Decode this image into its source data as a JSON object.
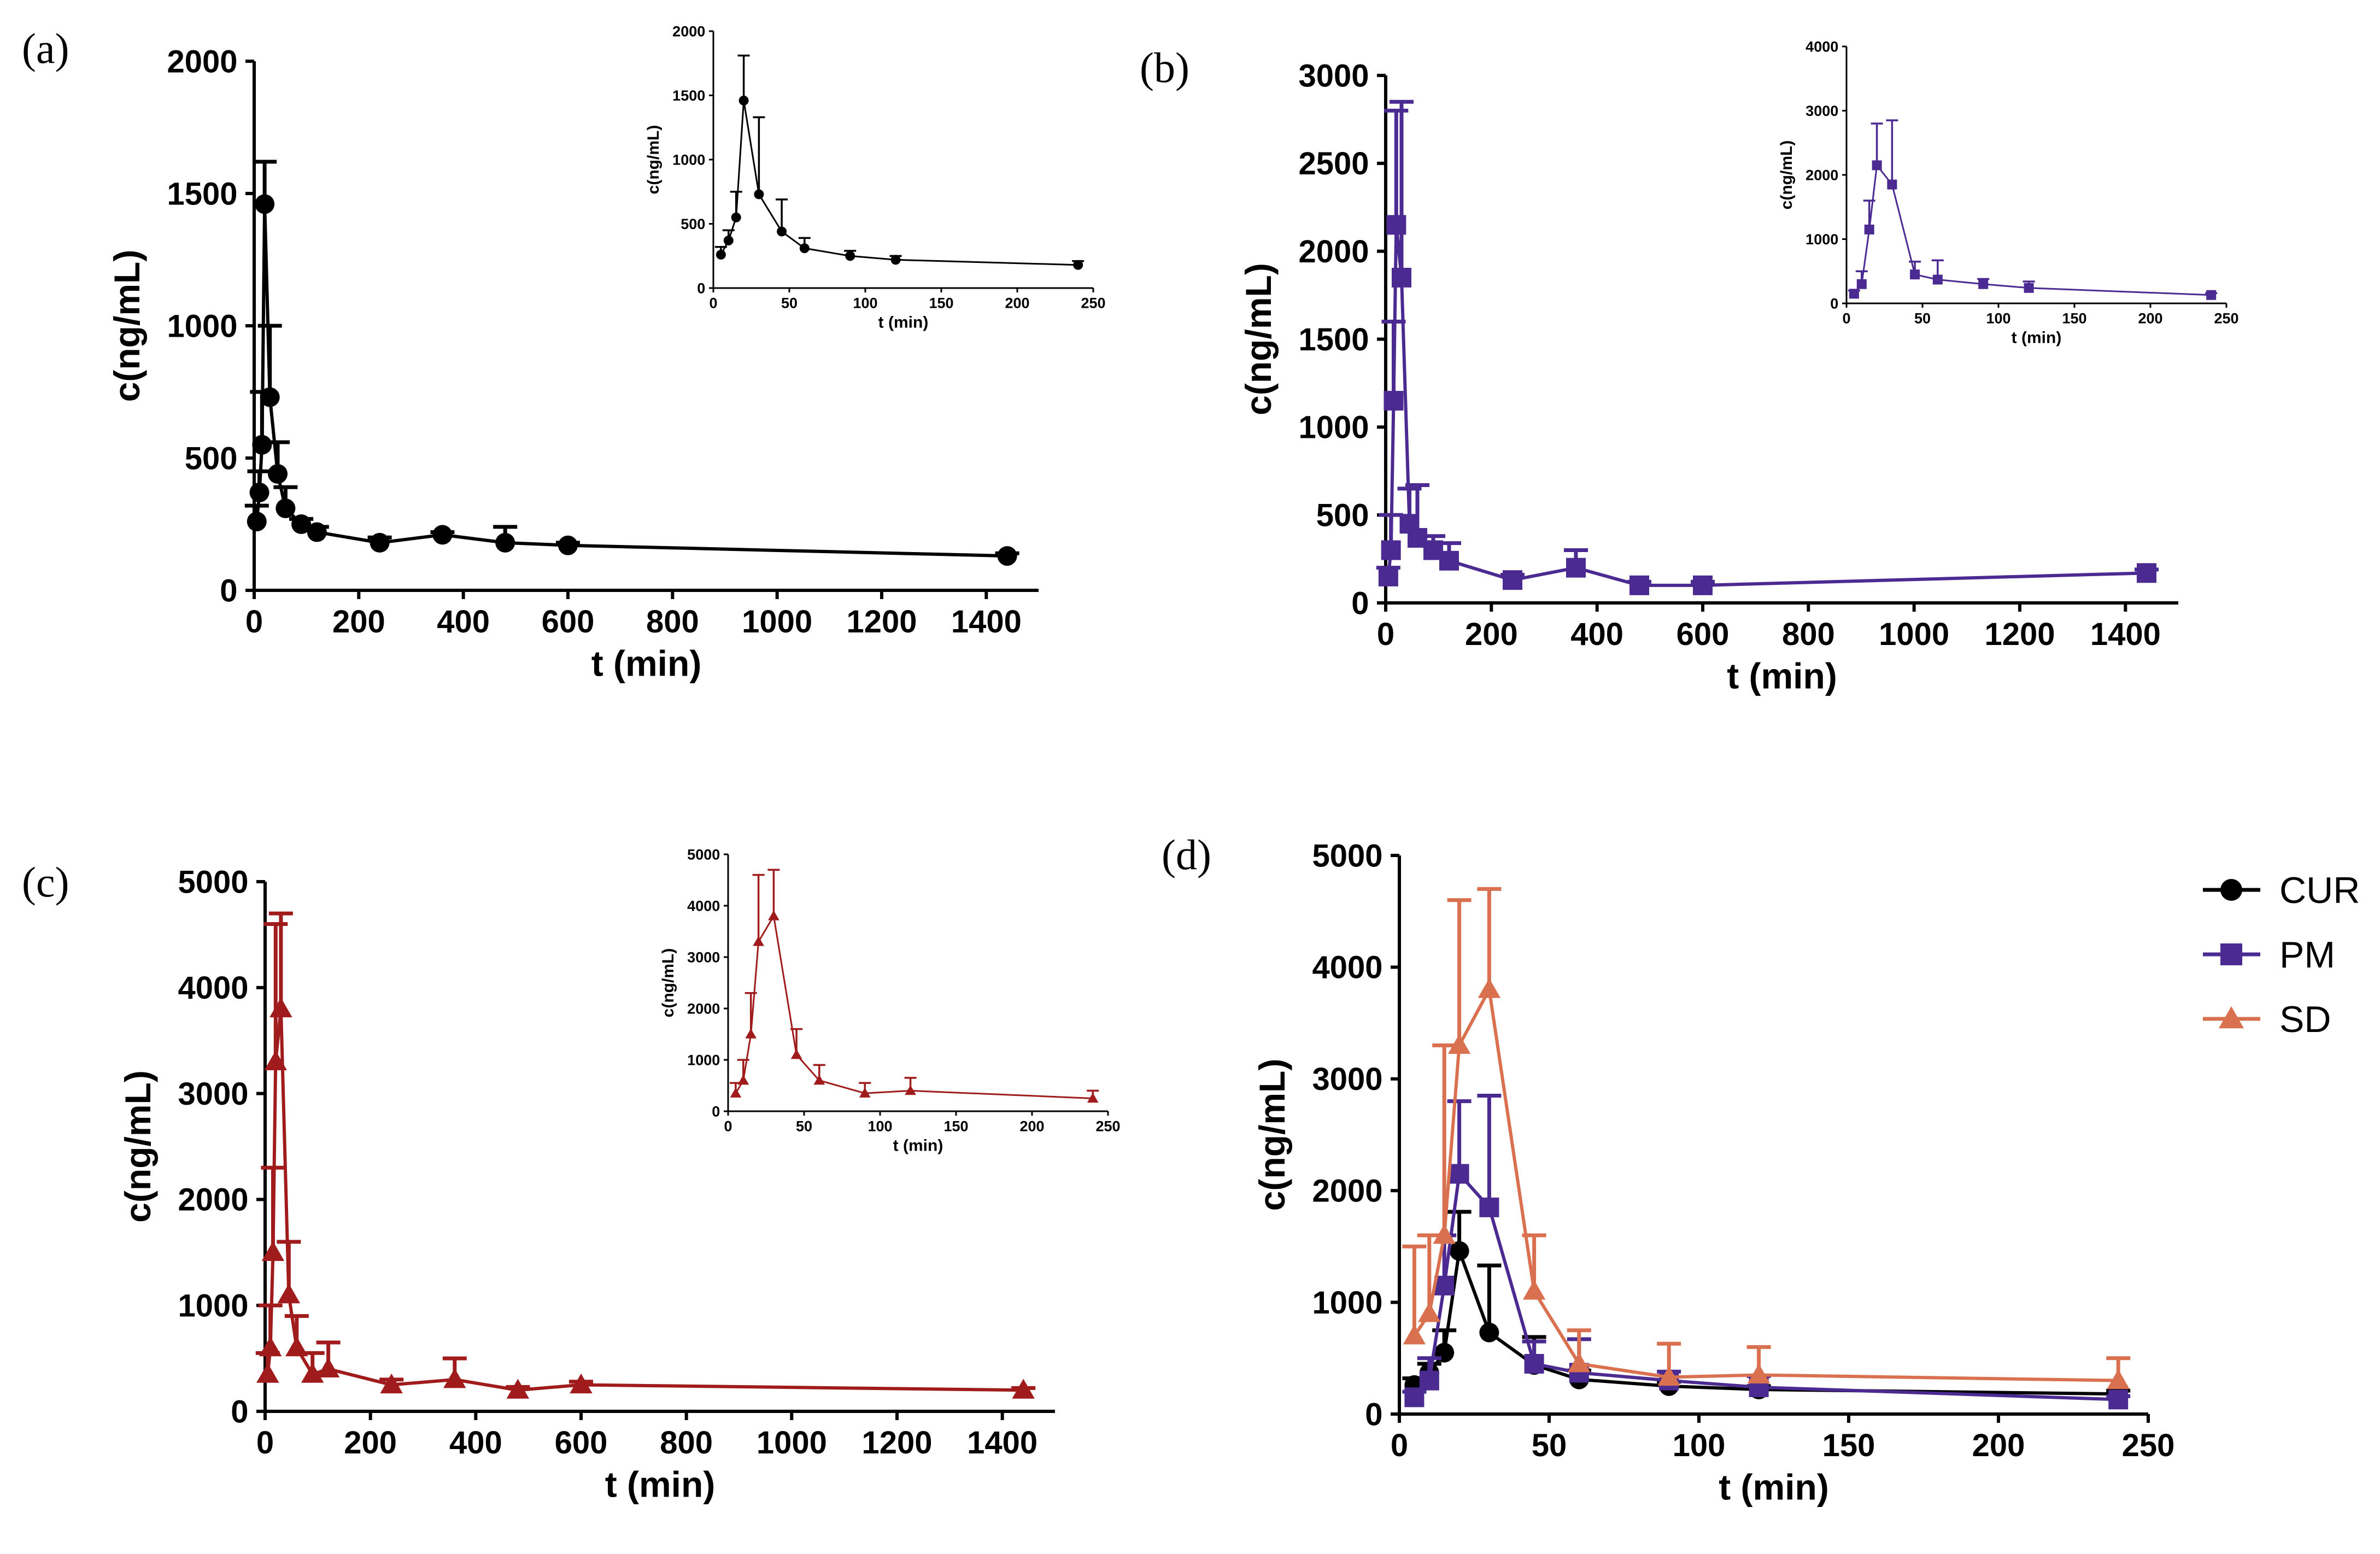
{
  "colors": {
    "cur": "#000000",
    "pm": "#4b2a91",
    "sd_c": "#a01c1c",
    "sd_d": "#d9704f"
  },
  "chart_data": [
    {
      "id": "a",
      "panel_label": "(a)",
      "type": "line",
      "xlabel": "t (min)",
      "ylabel": "c(ng/mL)",
      "xlim": [
        0,
        1500
      ],
      "ylim": [
        0,
        2000
      ],
      "xticks": [
        0,
        200,
        400,
        600,
        800,
        1000,
        1200,
        1400
      ],
      "yticks": [
        0,
        500,
        1000,
        1500,
        2000
      ],
      "series": [
        {
          "name": "CUR",
          "color_key": "cur",
          "marker": "circle",
          "x": [
            5,
            10,
            15,
            20,
            30,
            45,
            60,
            90,
            120,
            240,
            360,
            480,
            600,
            1440
          ],
          "y": [
            260,
            370,
            550,
            1460,
            730,
            440,
            310,
            250,
            220,
            180,
            210,
            180,
            170,
            130
          ],
          "err": [
            60,
            80,
            200,
            160,
            270,
            120,
            80,
            20,
            20,
            20,
            10,
            60,
            10,
            10
          ]
        }
      ],
      "inset": {
        "xlabel": "t (min)",
        "ylabel": "c(ng/mL)",
        "xlim": [
          0,
          250
        ],
        "ylim": [
          0,
          2000
        ],
        "xticks": [
          0,
          50,
          100,
          150,
          200,
          250
        ],
        "yticks": [
          0,
          500,
          1000,
          1500,
          2000
        ],
        "series": [
          {
            "color_key": "cur",
            "marker": "circle",
            "x": [
              5,
              10,
              15,
              20,
              30,
              45,
              60,
              90,
              120,
              240
            ],
            "y": [
              260,
              370,
              550,
              1460,
              730,
              440,
              310,
              250,
              220,
              180
            ],
            "err": [
              60,
              80,
              200,
              350,
              600,
              250,
              80,
              40,
              30,
              30
            ]
          }
        ]
      }
    },
    {
      "id": "b",
      "panel_label": "(b)",
      "type": "line",
      "xlabel": "t (min)",
      "ylabel": "c(ng/mL)",
      "xlim": [
        0,
        1500
      ],
      "ylim": [
        0,
        3000
      ],
      "xticks": [
        0,
        200,
        400,
        600,
        800,
        1000,
        1200,
        1400
      ],
      "yticks": [
        0,
        500,
        1000,
        1500,
        2000,
        2500,
        3000
      ],
      "series": [
        {
          "name": "PM",
          "color_key": "pm",
          "marker": "square",
          "x": [
            5,
            10,
            15,
            20,
            30,
            45,
            60,
            90,
            120,
            240,
            360,
            480,
            600,
            1440
          ],
          "y": [
            150,
            300,
            1150,
            2150,
            1850,
            450,
            370,
            300,
            240,
            130,
            200,
            100,
            100,
            170
          ],
          "err": [
            50,
            200,
            450,
            650,
            1000,
            200,
            300,
            80,
            100,
            30,
            100,
            20,
            20,
            20
          ]
        }
      ],
      "inset": {
        "xlabel": "t (min)",
        "ylabel": "c(ng/mL)",
        "xlim": [
          0,
          250
        ],
        "ylim": [
          0,
          4000
        ],
        "xticks": [
          0,
          50,
          100,
          150,
          200,
          250
        ],
        "yticks": [
          0,
          1000,
          2000,
          3000,
          4000
        ],
        "series": [
          {
            "color_key": "pm",
            "marker": "square",
            "x": [
              5,
              10,
              15,
              20,
              30,
              45,
              60,
              90,
              120,
              240
            ],
            "y": [
              150,
              300,
              1150,
              2150,
              1850,
              450,
              370,
              300,
              240,
              130
            ],
            "err": [
              50,
              200,
              450,
              650,
              1000,
              200,
              300,
              80,
              100,
              30
            ]
          }
        ]
      }
    },
    {
      "id": "c",
      "panel_label": "(c)",
      "type": "line",
      "xlabel": "t (min)",
      "ylabel": "c(ng/mL)",
      "xlim": [
        0,
        1500
      ],
      "ylim": [
        0,
        5000
      ],
      "xticks": [
        0,
        200,
        400,
        600,
        800,
        1000,
        1200,
        1400
      ],
      "yticks": [
        0,
        1000,
        2000,
        3000,
        4000,
        5000
      ],
      "series": [
        {
          "name": "SD",
          "color_key": "sd_c",
          "marker": "triangle",
          "x": [
            5,
            10,
            15,
            20,
            30,
            45,
            60,
            90,
            120,
            240,
            360,
            480,
            600,
            1440
          ],
          "y": [
            350,
            600,
            1500,
            3300,
            3800,
            1100,
            600,
            350,
            400,
            250,
            300,
            200,
            250,
            200
          ],
          "err": [
            200,
            400,
            800,
            1300,
            900,
            500,
            300,
            200,
            250,
            50,
            200,
            30,
            30,
            20
          ]
        }
      ],
      "inset": {
        "xlabel": "t (min)",
        "ylabel": "c(ng/mL)",
        "xlim": [
          0,
          250
        ],
        "ylim": [
          0,
          5000
        ],
        "xticks": [
          0,
          50,
          100,
          150,
          200,
          250
        ],
        "yticks": [
          0,
          1000,
          2000,
          3000,
          4000,
          5000
        ],
        "series": [
          {
            "color_key": "sd_c",
            "marker": "triangle",
            "x": [
              5,
              10,
              15,
              20,
              30,
              45,
              60,
              90,
              120,
              240
            ],
            "y": [
              350,
              600,
              1500,
              3300,
              3800,
              1100,
              600,
              350,
              400,
              250
            ],
            "err": [
              200,
              400,
              800,
              1300,
              900,
              500,
              300,
              200,
              250,
              150
            ]
          }
        ]
      }
    },
    {
      "id": "d",
      "panel_label": "(d)",
      "type": "line",
      "xlabel": "t (min)",
      "ylabel": "c(ng/mL)",
      "xlim": [
        0,
        250
      ],
      "ylim": [
        0,
        5000
      ],
      "xticks": [
        0,
        50,
        100,
        150,
        200,
        250
      ],
      "yticks": [
        0,
        1000,
        2000,
        3000,
        4000,
        5000
      ],
      "legend": "top-right",
      "series": [
        {
          "name": "CUR",
          "color_key": "cur",
          "marker": "circle",
          "x": [
            5,
            10,
            15,
            20,
            30,
            45,
            60,
            90,
            120,
            240
          ],
          "y": [
            260,
            370,
            550,
            1460,
            730,
            440,
            310,
            250,
            220,
            180
          ],
          "err": [
            60,
            80,
            200,
            350,
            600,
            250,
            80,
            40,
            30,
            30
          ]
        },
        {
          "name": "PM",
          "color_key": "pm",
          "marker": "square",
          "x": [
            5,
            10,
            15,
            20,
            30,
            45,
            60,
            90,
            120,
            240
          ],
          "y": [
            150,
            300,
            1150,
            2150,
            1850,
            450,
            370,
            300,
            240,
            130
          ],
          "err": [
            50,
            200,
            450,
            650,
            1000,
            200,
            300,
            80,
            100,
            30
          ]
        },
        {
          "name": "SD",
          "color_key": "sd_d",
          "marker": "triangle",
          "x": [
            5,
            10,
            15,
            20,
            30,
            45,
            60,
            90,
            120,
            240
          ],
          "y": [
            700,
            900,
            1600,
            3300,
            3800,
            1100,
            450,
            330,
            350,
            300
          ],
          "err": [
            800,
            700,
            1700,
            1300,
            900,
            500,
            300,
            300,
            250,
            200
          ]
        }
      ]
    }
  ]
}
